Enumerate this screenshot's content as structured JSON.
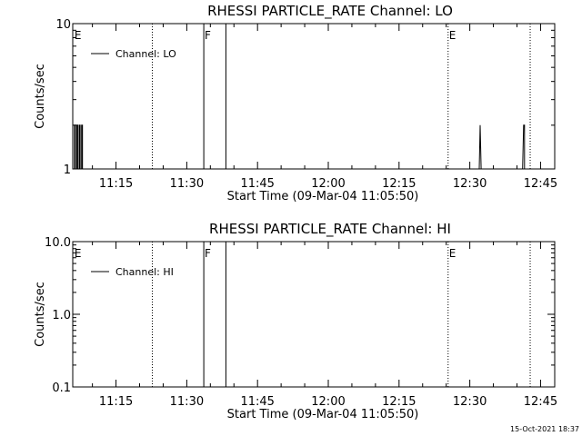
{
  "footer": {
    "timestamp": "15-Oct-2021 18:37"
  },
  "chart_data": [
    {
      "type": "line",
      "title": "RHESSI PARTICLE_RATE Channel: LO",
      "xlabel": "Start Time (09-Mar-04 11:05:50)",
      "ylabel": "Counts/sec",
      "x_tick_labels": [
        "11:15",
        "11:30",
        "11:45",
        "12:00",
        "12:15",
        "12:30",
        "12:45"
      ],
      "x_tick_minutes": [
        15,
        30,
        45,
        60,
        75,
        90,
        105
      ],
      "xlim_minutes": [
        5.83,
        108.0
      ],
      "ylim": [
        1,
        10
      ],
      "y_scale": "log",
      "y_tick_labels": [
        "1",
        "10"
      ],
      "y_tick_values": [
        1,
        10
      ],
      "legend": {
        "label": "Channel: LO",
        "position": "top-left"
      },
      "series": [
        {
          "name": "Channel: LO",
          "points": [
            [
              6.2,
              1
            ],
            [
              6.2,
              2
            ],
            [
              6.4,
              2
            ],
            [
              6.4,
              1
            ],
            [
              6.7,
              1
            ],
            [
              6.7,
              2
            ],
            [
              6.9,
              2
            ],
            [
              6.9,
              1
            ],
            [
              7.2,
              1
            ],
            [
              7.2,
              2
            ],
            [
              7.4,
              2
            ],
            [
              7.4,
              1
            ],
            [
              7.7,
              1
            ],
            [
              7.7,
              2
            ],
            [
              7.9,
              2
            ],
            [
              7.9,
              1
            ],
            [
              33.6,
              1
            ],
            [
              33.6,
              10
            ],
            [
              33.6,
              1
            ],
            [
              38.3,
              1
            ],
            [
              38.3,
              10
            ],
            [
              38.3,
              1
            ],
            [
              92.0,
              1
            ],
            [
              92.2,
              2
            ],
            [
              92.4,
              1
            ],
            [
              101.2,
              1
            ],
            [
              101.4,
              2
            ],
            [
              101.6,
              2
            ],
            [
              101.6,
              1
            ]
          ]
        }
      ],
      "flags": [
        {
          "label": "E",
          "minute": 6.0
        },
        {
          "label": "F",
          "minute": 33.6
        },
        {
          "label": "E",
          "minute": 85.4
        }
      ],
      "dotted_marker_minutes": [
        22.7,
        85.4,
        102.8
      ]
    },
    {
      "type": "line",
      "title": "RHESSI PARTICLE_RATE Channel: HI",
      "xlabel": "Start Time (09-Mar-04 11:05:50)",
      "ylabel": "Counts/sec",
      "x_tick_labels": [
        "11:15",
        "11:30",
        "11:45",
        "12:00",
        "12:15",
        "12:30",
        "12:45"
      ],
      "x_tick_minutes": [
        15,
        30,
        45,
        60,
        75,
        90,
        105
      ],
      "xlim_minutes": [
        5.83,
        108.0
      ],
      "ylim": [
        0.1,
        10
      ],
      "y_scale": "log",
      "y_tick_labels": [
        "0.1",
        "1.0",
        "10.0"
      ],
      "y_tick_values": [
        0.1,
        1,
        10
      ],
      "legend": {
        "label": "Channel: HI",
        "position": "top-left"
      },
      "series": [
        {
          "name": "Channel: HI",
          "points": [
            [
              33.6,
              0.1
            ],
            [
              33.6,
              10
            ],
            [
              33.6,
              0.1
            ],
            [
              38.3,
              0.1
            ],
            [
              38.3,
              10
            ],
            [
              38.3,
              0.1
            ]
          ]
        }
      ],
      "flags": [
        {
          "label": "E",
          "minute": 6.0
        },
        {
          "label": "F",
          "minute": 33.6
        },
        {
          "label": "E",
          "minute": 85.4
        }
      ],
      "dotted_marker_minutes": [
        22.7,
        85.4,
        102.8
      ]
    }
  ]
}
